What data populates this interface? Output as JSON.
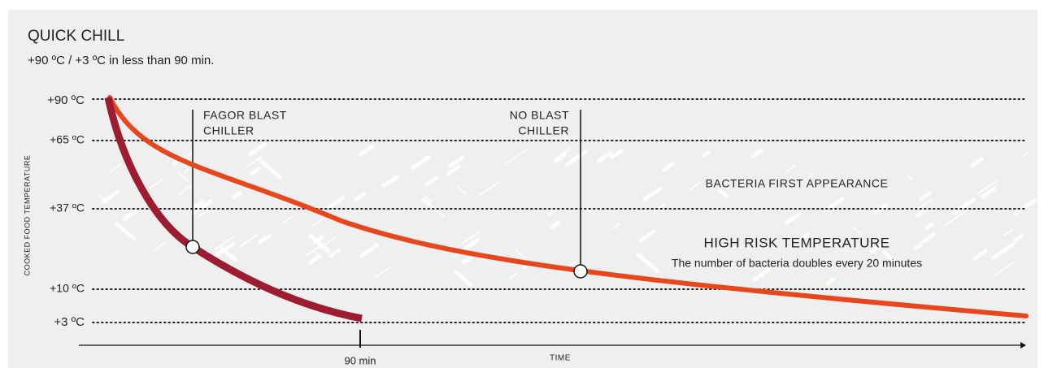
{
  "header": {
    "title": "QUICK CHILL",
    "subtitle": "+90 ºC / +3 ºC in less than 90 min."
  },
  "axis": {
    "y_title": "COOKED FOOD TEMPERATURE",
    "y_labels": [
      "+90 ºC",
      "+65 ºC",
      "+37 ºC",
      "+10 ºC",
      "+3 ºC"
    ],
    "x_title": "TIME",
    "x_tick": "90 min"
  },
  "annotations": {
    "fagor": [
      "FAGOR BLAST",
      "CHILLER"
    ],
    "no_blast": [
      "NO BLAST",
      "CHILLER"
    ]
  },
  "zones": {
    "bacteria": "BACTERIA FIRST APPEARANCE",
    "high_risk": {
      "title": "HIGH RISK TEMPERATURE",
      "note": "The number of bacteria doubles every 20 minutes"
    }
  }
}
